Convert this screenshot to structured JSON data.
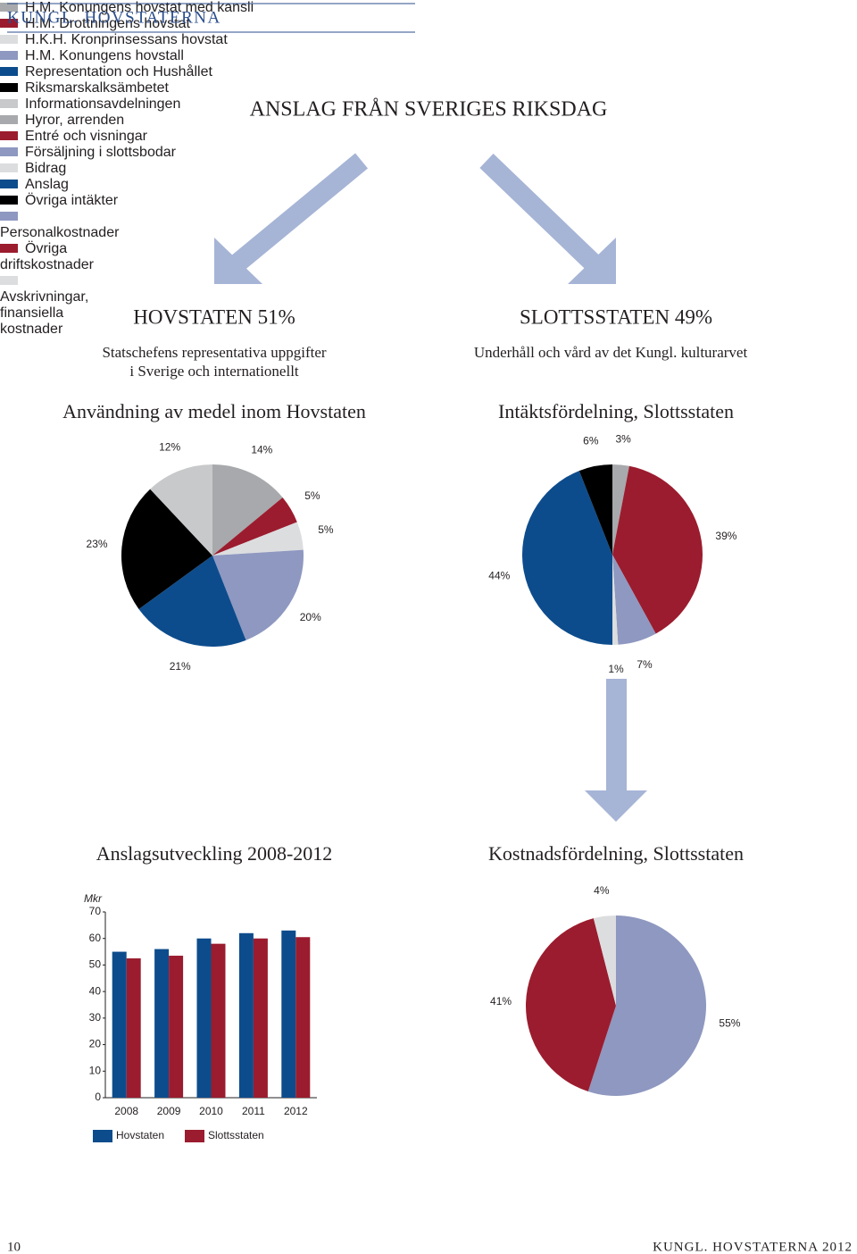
{
  "header": {
    "title": "KUNGL. HOVSTATERNA"
  },
  "title": "ANSLAG FRÅN SVERIGES RIKSDAG",
  "sections": [
    {
      "heading": "HOVSTATEN 51%",
      "description": [
        "Statschefens representativa uppgifter",
        "i Sverige och internationellt"
      ]
    },
    {
      "heading": "SLOTTSSTATEN 49%",
      "description": [
        "Underhåll och vård av det Kungl. kulturarvet"
      ]
    }
  ],
  "chart_data": [
    {
      "type": "pie",
      "title": "Användning av medel inom Hovstaten",
      "categories": [
        "H.M. Konungens hovstat med kansli",
        "H.M. Drottningens hovstat",
        "H.K.H. Kronprinsessans hovstat",
        "H.M. Konungens hovstall",
        "Representation och Hushållet",
        "Riksmarskalksämbetet",
        "Informationsavdelningen"
      ],
      "values": [
        14,
        5,
        5,
        20,
        21,
        23,
        12
      ],
      "value_labels": [
        "14%",
        "5%",
        "5%",
        "20%",
        "21%",
        "23%",
        "12%"
      ],
      "colors": [
        "#a7a9ac",
        "#9b1c2e",
        "#dcdddf",
        "#8e98c0",
        "#0d4c8c",
        "#000000",
        "#c8c9cb"
      ]
    },
    {
      "type": "pie",
      "title": "Intäktsfördelning, Slottsstaten",
      "categories": [
        "Hyror, arrenden",
        "Entré och visningar",
        "Försäljning i slottsbodar",
        "Bidrag",
        "Anslag",
        "Övriga intäkter"
      ],
      "values": [
        3,
        39,
        7,
        1,
        44,
        6
      ],
      "value_labels": [
        "3%",
        "39%",
        "7%",
        "1%",
        "44%",
        "6%"
      ],
      "colors": [
        "#a7a9ac",
        "#9b1c2e",
        "#8e98c0",
        "#dcdddf",
        "#0d4c8c",
        "#000000"
      ]
    },
    {
      "type": "bar",
      "title": "Anslagsutveckling 2008-2012",
      "y_label": "Mkr",
      "categories": [
        "2008",
        "2009",
        "2010",
        "2011",
        "2012"
      ],
      "series": [
        {
          "name": "Hovstaten",
          "color": "#0d4c8c",
          "values": [
            55,
            56,
            60,
            62,
            63
          ]
        },
        {
          "name": "Slottsstaten",
          "color": "#9b1c2e",
          "values": [
            52.5,
            53.5,
            58,
            60,
            60.5
          ]
        }
      ],
      "ylim": [
        0,
        70
      ],
      "yticks": [
        0,
        10,
        20,
        30,
        40,
        50,
        60,
        70
      ],
      "grid": false
    },
    {
      "type": "pie",
      "title": "Kostnadsfördelning, Slottsstaten",
      "categories": [
        "Personalkostnader",
        "Övriga driftskostnader",
        "Avskrivningar, finansiella kostnader"
      ],
      "values": [
        55,
        41,
        4
      ],
      "value_labels": [
        "55%",
        "41%",
        "4%"
      ],
      "colors": [
        "#8e98c0",
        "#9b1c2e",
        "#dcdddf"
      ]
    }
  ],
  "footer": {
    "page_number": "10",
    "publication": "KUNGL. HOVSTATERNA 2012"
  }
}
